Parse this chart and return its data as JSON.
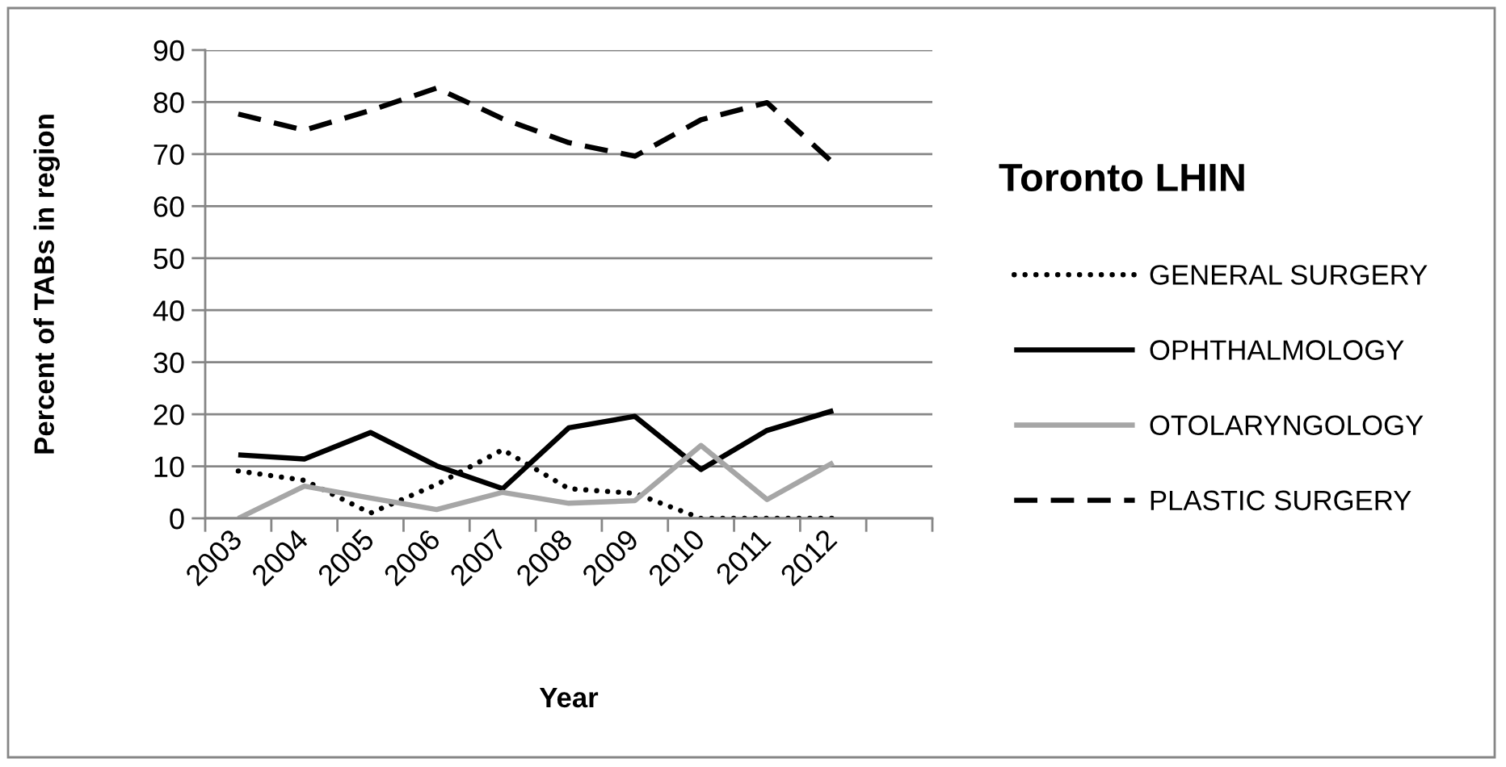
{
  "chart_data": {
    "type": "line",
    "title": "Toronto LHIN",
    "xlabel": "Year",
    "ylabel": "Percent of TABs in region",
    "categories": [
      "2003",
      "2004",
      "2005",
      "2006",
      "2007",
      "2008",
      "2009",
      "2010",
      "2011",
      "2012",
      null
    ],
    "series": [
      {
        "name": "GENERAL SURGERY",
        "color": "#000000",
        "line_style": "dotted",
        "values": [
          9.1,
          7.3,
          1.0,
          6.5,
          13.2,
          5.7,
          4.8,
          0,
          0,
          0,
          null
        ]
      },
      {
        "name": "OPHTHALMOLOGY",
        "color": "#000000",
        "line_style": "solid",
        "values": [
          12.2,
          11.4,
          16.5,
          10.1,
          5.7,
          17.4,
          19.6,
          9.4,
          16.9,
          20.7,
          null
        ]
      },
      {
        "name": "OTOLARYNGOLOGY",
        "color": "#a6a6a6",
        "line_style": "solid",
        "values": [
          0,
          6.2,
          3.9,
          1.7,
          5.0,
          2.9,
          3.4,
          14.0,
          3.6,
          10.7,
          null
        ]
      },
      {
        "name": "PLASTIC SURGERY",
        "color": "#000000",
        "line_style": "dashed",
        "values": [
          77.7,
          74.6,
          78.4,
          82.7,
          76.8,
          72.2,
          69.6,
          76.6,
          79.9,
          68.3,
          null
        ]
      }
    ],
    "ylim": [
      0,
      90
    ],
    "yticks": [
      0,
      10,
      20,
      30,
      40,
      50,
      60,
      70,
      80,
      90
    ],
    "grid": "y",
    "legend": "right"
  }
}
